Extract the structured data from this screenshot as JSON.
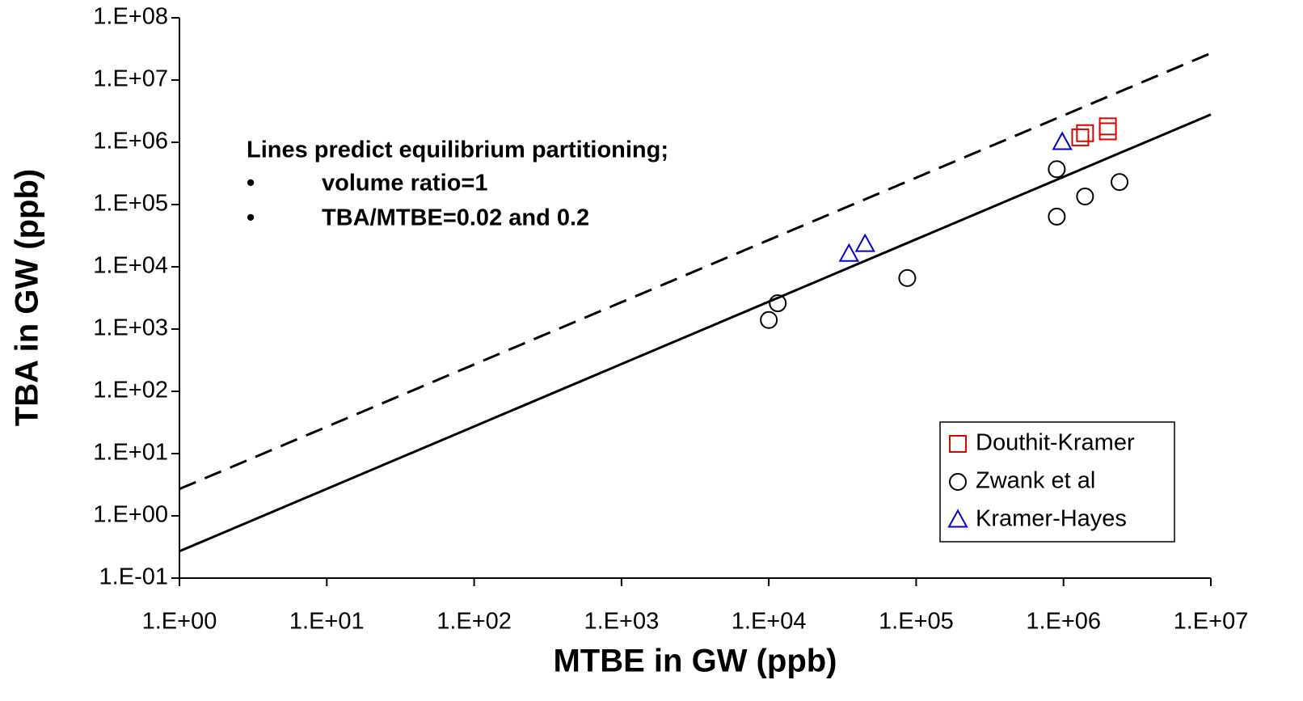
{
  "chart_data": {
    "type": "scatter",
    "x_label": "MTBE in GW (ppb)",
    "y_label": "TBA in GW (ppb)",
    "log_x": true,
    "log_y": true,
    "xlim": [
      1,
      10000000
    ],
    "ylim": [
      0.1,
      100000000
    ],
    "xticks": [
      {
        "value": 1,
        "label": "1.E+00"
      },
      {
        "value": 10,
        "label": "1.E+01"
      },
      {
        "value": 100,
        "label": "1.E+02"
      },
      {
        "value": 1000,
        "label": "1.E+03"
      },
      {
        "value": 10000,
        "label": "1.E+04"
      },
      {
        "value": 100000,
        "label": "1.E+05"
      },
      {
        "value": 1000000,
        "label": "1.E+06"
      },
      {
        "value": 10000000,
        "label": "1.E+07"
      }
    ],
    "yticks": [
      {
        "value": 0.1,
        "label": "1.E-01"
      },
      {
        "value": 1,
        "label": "1.E+00"
      },
      {
        "value": 10,
        "label": "1.E+01"
      },
      {
        "value": 100,
        "label": "1.E+02"
      },
      {
        "value": 1000,
        "label": "1.E+03"
      },
      {
        "value": 10000,
        "label": "1.E+04"
      },
      {
        "value": 100000,
        "label": "1.E+05"
      },
      {
        "value": 1000000,
        "label": "1.E+06"
      },
      {
        "value": 10000000,
        "label": "1.E+07"
      },
      {
        "value": 100000000,
        "label": "1.E+08"
      }
    ],
    "annotation": {
      "title": "Lines predict equilibrium partitioning;",
      "items": [
        {
          "bullet": "•",
          "text": "volume ratio=1"
        },
        {
          "bullet": "•",
          "text": "TBA/MTBE=0.02 and 0.2"
        }
      ]
    },
    "lines": [
      {
        "style": "solid",
        "color": "#000000",
        "x": [
          1,
          10000000
        ],
        "values": [
          0.27,
          2800000
        ]
      },
      {
        "style": "dashed",
        "color": "#000000",
        "x": [
          1,
          10000000
        ],
        "values": [
          2.7,
          27000000
        ]
      }
    ],
    "legend": "lower right",
    "series": [
      {
        "name": "Douthit-Kramer",
        "marker": "square",
        "color": "#e00000",
        "x": [
          1300000,
          1400000,
          2000000,
          2000000
        ],
        "values": [
          1200000,
          1400000,
          1500000,
          1800000
        ]
      },
      {
        "name": "Zwank et al",
        "marker": "circle",
        "color": "#000000",
        "x": [
          10000,
          11500,
          87000,
          900000,
          900000,
          1400000,
          2400000
        ],
        "values": [
          1400,
          2600,
          6600,
          64000,
          370000,
          135000,
          230000
        ]
      },
      {
        "name": "Kramer-Hayes",
        "marker": "triangle",
        "color": "#0000cc",
        "x": [
          35000,
          45000,
          980000
        ],
        "values": [
          16000,
          23000,
          1000000
        ]
      }
    ]
  }
}
